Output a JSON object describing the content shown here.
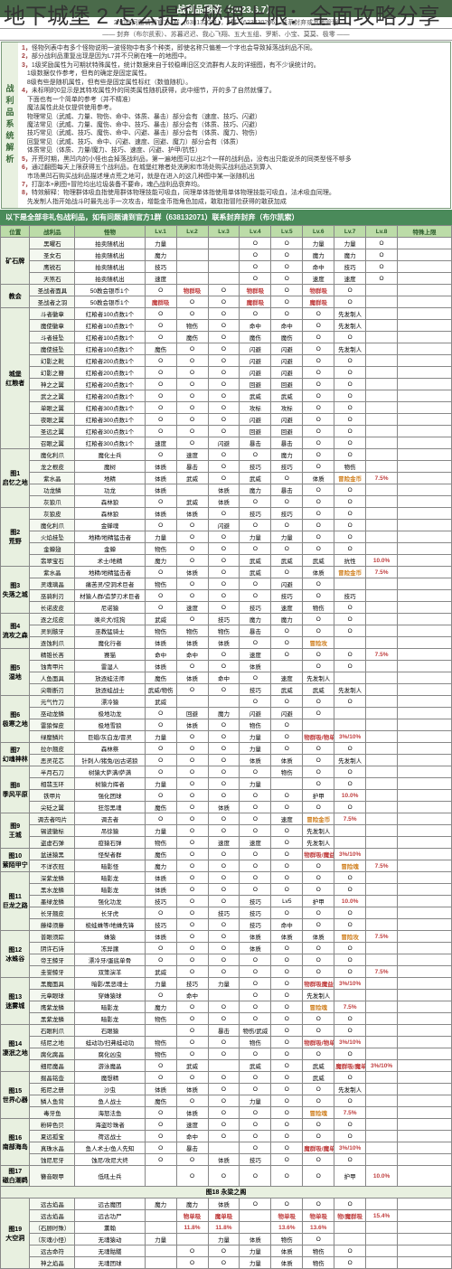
{
  "overlay_title": "地下城堡 2 怎么提升秘银上限：全面攻略分享",
  "header": "战利品图鉴（2023.6.7）",
  "credit1": "2.如有问题请到官方1群（638132071），4群（623430206）联系封弃或其他管理",
  "credit2": "—— 封弃（布尔凯索）、苏暮迟迟、我心飞翔、五大五组、罗斯、小宝、莫莫、极零 ——",
  "side_label": "战利品系统解析",
  "notes": [
    "怪物列表中有多个怪物说明一波怪物中有多个种类，即使名称只偏差一个字也会导致掉落战利品不同。",
    "部分战利品重复出现是因为L7并不只刷在唯一的地图中。",
    "1级奖励属性为可期状特殊属性，统计数据来自于较稳峰旧区交流群有人友的详细图，有不少误统计的。\n1级数据仅作参考，但有的确定是固定属性。\n8级有些是随机属性，但有些是固定属性标红（数值随机）。",
    "未标明的0显示是其特攻属性外的同类属性随机获得，此中细节，开的多了自然就懂了。\n下面也有一个简单的参考（并不精准）\n魔法属性此处仅提供使用参考。\n物理常见（武威、力量、物伤、命中、体质、暴击）部分会有（速度、技巧、闪避）\n魔法常见（武威、力量、魔伤、命中、技巧、暴击）部分会有（体质、技巧、闪避）\n技巧常见（武威、技巧、魔伤、命中、闪避、暴击）部分会有（体质、魔力、物伤）\n回复常见（武威、技巧、命中、闪避、速度、回避、魔力）部分会有（体质）\n体质常见（体质、力量/魔力、技巧、速度、闪避、护甲/抗性）",
    "开荒时期，黑凹内的小怪也会掉落战利品，第一遍地图可以出2个一样的战利品，没有出只能说杀的同类型怪不够多",
    "通过翻图每天上限获得五个战利品，在城堡红粮者处洗刷和市场处购买战利品达到算入\n市场黑凹石购买战利品描述埋点荒之地可，就是在进入的这几种图中某一张随机出",
    "打副本+刷图+冒险均出垃圾装备不要命，魂凸战利品衰弃均。",
    "特效解释：物理群体吸血指使用群体物理技能可吸血，同理单体指使用单体物理技能可吸血，法术吸血同理。\n先发制人指开始战斗时最先出手一次攻击，增能金币指角色加成，敢取指冒险获得的敢获加成"
  ],
  "green_bar": "以下是全部非礼包战利品，如有问题请到官方1群（638132071）联系封弃封弃（布尔凯索）",
  "cols": [
    "位置",
    "战利品",
    "怪物",
    "Lv.1",
    "Lv.2",
    "Lv.3",
    "Lv.4",
    "Lv.5",
    "Lv.6",
    "Lv.7",
    "Lv.8",
    "特殊上限"
  ],
  "zones": [
    {
      "zone": "矿石牌",
      "rows": [
        [
          "黑曜石",
          "拍卖随机出",
          "力量",
          "",
          "",
          "O",
          "O",
          "力量",
          "力量",
          "O",
          ""
        ],
        [
          "圣女石",
          "拍卖随机出",
          "魔力",
          "",
          "",
          "O",
          "O",
          "魔力",
          "魔力",
          "O",
          ""
        ],
        [
          "鹰锐石",
          "拍卖随机出",
          "技巧",
          "",
          "",
          "O",
          "O",
          "命中",
          "技巧",
          "O",
          ""
        ],
        [
          "天煞石",
          "拍卖随机出",
          "速度",
          "",
          "",
          "O",
          "O",
          "速度",
          "速度",
          "O",
          ""
        ]
      ]
    },
    {
      "zone": "教会",
      "rows": [
        [
          "圣战者面具",
          "50教会银币1个",
          "O",
          "物群吸",
          "O",
          "物群吸",
          "O",
          "物群吸",
          "O",
          ""
        ],
        [
          "圣战者之羽",
          "50教会银币1个",
          "魔群吸",
          "O",
          "O",
          "魔群吸",
          "O",
          "魔群吸",
          "O",
          ""
        ]
      ]
    },
    {
      "zone": "城堡\n红粮者",
      "rows": [
        [
          "斗者徽章",
          "红粮者100点数1个",
          "O",
          "O",
          "O",
          "O",
          "O",
          "O",
          "先发制人",
          ""
        ],
        [
          "魔使徽章",
          "红粮者100点数1个",
          "O",
          "物伤",
          "O",
          "命中",
          "命中",
          "O",
          "先发制人",
          ""
        ],
        [
          "斗者挂坠",
          "红粮者100点数1个",
          "O",
          "魔伤",
          "O",
          "魔伤",
          "魔伤",
          "O",
          "O",
          ""
        ],
        [
          "魔使挂坠",
          "红粮者100点数1个",
          "魔伤",
          "O",
          "O",
          "闪避",
          "闪避",
          "O",
          "先发制人",
          ""
        ],
        [
          "幻影之靴",
          "红粮者200点数1个",
          "O",
          "O",
          "O",
          "闪避",
          "闪避",
          "O",
          "O",
          ""
        ],
        [
          "幻影之簪",
          "红粮者200点数1个",
          "O",
          "O",
          "O",
          "闪避",
          "闪避",
          "O",
          "O",
          ""
        ],
        [
          "神之之翼",
          "红粮者200点数1个",
          "O",
          "O",
          "O",
          "回避",
          "回避",
          "O",
          "O",
          ""
        ],
        [
          "武之之翼",
          "红粮者200点数1个",
          "O",
          "O",
          "O",
          "武威",
          "武威",
          "O",
          "O",
          ""
        ],
        [
          "单眼之翼",
          "红粮者300点数1个",
          "O",
          "O",
          "O",
          "攻标",
          "攻标",
          "O",
          "O",
          ""
        ],
        [
          "夜眼之翼",
          "红粮者300点数1个",
          "O",
          "O",
          "O",
          "闪避",
          "闪避",
          "O",
          "O",
          ""
        ],
        [
          "圣远之翼",
          "红粮者300点数1个",
          "O",
          "O",
          "O",
          "回避",
          "回避",
          "O",
          "O",
          ""
        ],
        [
          "召眼之翼",
          "红粮者300点数1个",
          "速度",
          "O",
          "闪避",
          "暴击",
          "暴击",
          "O",
          "O",
          ""
        ]
      ]
    },
    {
      "zone": "图1\n启忆之地",
      "rows": [
        [
          "魔化利爪",
          "魔化士兵",
          "O",
          "速度",
          "O",
          "O",
          "魔力",
          "O",
          "O",
          ""
        ],
        [
          "龙之根皮",
          "魔树",
          "体质",
          "暴击",
          "O",
          "技巧",
          "技巧",
          "O",
          "物伤",
          ""
        ],
        [
          "紫水晶",
          "地精",
          "体质",
          "武威",
          "O",
          "武威",
          "O",
          "体质",
          "冒险金币",
          "7.5%"
        ],
        [
          "功龙鳞",
          "功龙",
          "体质",
          "",
          "体质",
          "魔力",
          "暴击",
          "O",
          "O",
          ""
        ],
        [
          "灰狼爪",
          "森林狼",
          "O",
          "武威",
          "体质",
          "O",
          "O",
          "O",
          "O",
          ""
        ]
      ]
    },
    {
      "zone": "图2\n荒野",
      "rows": [
        [
          "灰狼皮",
          "森林狼",
          "体质",
          "体质",
          "O",
          "技巧",
          "技巧",
          "O",
          "O",
          ""
        ],
        [
          "魔化利爪",
          "金蝉魂",
          "O",
          "O",
          "闪避",
          "O",
          "O",
          "O",
          "O",
          ""
        ],
        [
          "火焰挂坠",
          "地精/地精猛击者",
          "力量",
          "O",
          "O",
          "力量",
          "力量",
          "O",
          "O",
          ""
        ],
        [
          "金蝉翅",
          "金蝉",
          "物伤",
          "O",
          "O",
          "O",
          "O",
          "O",
          "O",
          ""
        ],
        [
          "翡翠宝石",
          "术士/地精",
          "魔力",
          "O",
          "O",
          "武威",
          "武威",
          "武威",
          "抗性",
          "10.0%"
        ]
      ]
    },
    {
      "zone": "图3\n失落之城",
      "rows": [
        [
          "紫水晶",
          "地精/地精猛击者",
          "O",
          "体质",
          "O",
          "武威",
          "O",
          "体质",
          "冒险金币",
          "7.5%"
        ],
        [
          "灵魂璃晶",
          "痛苦灵/空洞术巨者",
          "物伤",
          "O",
          "O",
          "O",
          "闪避",
          "O",
          "",
          ""
        ],
        [
          "巫骑利刃",
          "材猿人群/造梦刃术巨者",
          "O",
          "O",
          "O",
          "O",
          "技巧",
          "O",
          "技巧",
          ""
        ],
        [
          "长诺皮皮",
          "尼诺猿",
          "O",
          "速度",
          "O",
          "技巧",
          "速度",
          "物伤",
          "O",
          ""
        ]
      ]
    },
    {
      "zone": "图4\n流攻之森",
      "rows": [
        [
          "逐之炫皮",
          "唤炎犬/炫狗",
          "武威",
          "O",
          "技巧",
          "魔力",
          "魔力",
          "O",
          "O",
          ""
        ],
        [
          "灵刹骸牙",
          "巫教猛骑士",
          "物伤",
          "物伤",
          "物伤",
          "暴击",
          "O",
          "O",
          "O",
          ""
        ],
        [
          "逐蚀利爪",
          "魔化行者",
          "体质",
          "体质",
          "体质",
          "O",
          "O",
          "冒险攻",
          "",
          ""
        ]
      ]
    },
    {
      "zone": "图5\n湿地",
      "rows": [
        [
          "精锥长吝",
          "赛猫",
          "命中",
          "命中",
          "O",
          "速度",
          "O",
          "O",
          "O",
          "7.5%"
        ],
        [
          "蚀青甲片",
          "雷湿人",
          "体质",
          "O",
          "O",
          "体质",
          "",
          "O",
          "O",
          ""
        ],
        [
          "人鱼面具",
          "放逐蛙法师",
          "魔伤",
          "体质",
          "命中",
          "O",
          "速度",
          "先发制人",
          "",
          ""
        ],
        [
          "尖嘶断刃",
          "放逐蛙战士",
          "武威/物伤",
          "O",
          "O",
          "技巧",
          "武威",
          "武威",
          "先发制人",
          ""
        ]
      ]
    },
    {
      "zone": "图6\n极寒之地",
      "rows": [
        [
          "元气竹刀",
          "漂冷猿",
          "武威",
          "",
          "",
          "O",
          "O",
          "O",
          "O",
          ""
        ],
        [
          "巫动龙鳞",
          "极地功龙",
          "O",
          "回避",
          "魔力",
          "闪避",
          "闪避",
          "O",
          "",
          ""
        ],
        [
          "雷狼悍皮",
          "极地雪狼",
          "O",
          "体质",
          "O",
          "物伤",
          "O",
          "",
          "",
          " "
        ],
        [
          "绿靡鳞片",
          "巨蛾/灰白龙/冒灵",
          "力量",
          "O",
          "O",
          "力量",
          "O",
          "物群吸/物单吸",
          "3%/10%",
          ""
        ]
      ]
    },
    {
      "zone": "图7\n幻魂神林",
      "rows": [
        [
          "拉尔翘皮",
          "森林祭",
          "O",
          "O",
          "O",
          "力量",
          "O",
          "O",
          "O",
          ""
        ],
        [
          "恶灵花芯",
          "针刺人/猪兔/凶古诺狼",
          "O",
          "O",
          "O",
          "体质",
          "体质",
          "O",
          "先发制人",
          ""
        ]
      ]
    },
    {
      "zone": "图8\n季风平原",
      "rows": [
        [
          "半月石刀",
          "树猿大萨满/萨满",
          "O",
          "O",
          "O",
          "O",
          "物伤",
          "O",
          "O",
          ""
        ],
        [
          "相翡玉环",
          "树猿力挥者",
          "力量",
          "O",
          "O",
          "力量",
          "",
          "O",
          "O",
          ""
        ],
        [
          "铁甲片",
          "强化团球",
          "O",
          "O",
          "O",
          "O",
          "O",
          "护甲",
          "10.0%",
          ""
        ],
        [
          "尖砭之翼",
          "狂怨黑魂",
          "魔伤",
          "O",
          "体质",
          "O",
          "O",
          "O",
          "O",
          ""
        ]
      ]
    },
    {
      "zone": "图9\n王城",
      "rows": [
        [
          "调去者吗片",
          "调去者",
          "O",
          "O",
          "O",
          "O",
          "速度",
          "冒险金币",
          "7.5%",
          ""
        ],
        [
          "锡波徽标",
          "吊徐猿",
          "力量",
          "O",
          "O",
          "O",
          "O",
          "先发制人",
          "",
          ""
        ],
        [
          "盗虚石弹",
          "疫猿石弹",
          "物伤",
          "O",
          "速度",
          "速度",
          "O",
          "先发制人",
          "",
          ""
        ]
      ]
    },
    {
      "zone": "图10\n萦陌甲宁",
      "rows": [
        [
          "盆迷猿黑",
          "怪梨者群",
          "魔伤",
          "O",
          "O",
          "O",
          "O",
          "物群吸/魔益指钱",
          "3%/10%",
          ""
        ],
        [
          "不详衣冠",
          "暗影怪",
          "魔力",
          "O",
          "O",
          "O",
          "O",
          "O",
          "冒险魂",
          "7.5%"
        ]
      ]
    },
    {
      "zone": "图11\n巨龙之路",
      "rows": [
        [
          "深紫龙鳞",
          "暗影龙",
          "体质",
          "O",
          "O",
          "O",
          "O",
          "O",
          "O",
          ""
        ],
        [
          "黑水龙鳞",
          "暗影龙",
          "体质",
          "O",
          "O",
          "O",
          "O",
          "O",
          "O",
          ""
        ],
        [
          "墨绿龙鳞",
          "强化功龙",
          "技巧",
          "O",
          "O",
          "技巧",
          "Lv5",
          "护甲",
          "10.0%",
          ""
        ],
        [
          "长牙翘皮",
          "长牙虎",
          "O",
          "O",
          "技巧",
          "技巧",
          "O",
          "O",
          "O",
          ""
        ],
        [
          "藤绛须藤",
          "梳蛙蛛等/地蛛先锋",
          "技巧",
          "O",
          "O",
          "技巧",
          "命中",
          "O",
          "O",
          ""
        ]
      ]
    },
    {
      "zone": "图12\n冰蛛谷",
      "rows": [
        [
          "普眼须踪",
          "蛛猿",
          "体质",
          "O",
          "O",
          "体质",
          "体质",
          "体质",
          "冒险攻",
          "7.5%"
        ],
        [
          "阴许石诗",
          "冻异譲",
          "O",
          "O",
          "O",
          "体质",
          "O",
          "O",
          "O",
          ""
        ],
        [
          "帝王鲸牙",
          "漂冷牙/蛋底单骨",
          "O",
          "O",
          "O",
          "O",
          "O",
          "O",
          "O",
          ""
        ],
        [
          "圭誉鲸牙",
          "双策演羊",
          "武威",
          "O",
          "O",
          "O",
          "O",
          "O",
          "O",
          "7.5%"
        ]
      ]
    },
    {
      "zone": "图13\n迷雾城",
      "rows": [
        [
          "黑魔面具",
          "暗影/黑恶魂士",
          "力量",
          "技巧",
          "力量",
          "O",
          "O",
          "物群吸魔益指钱",
          "3%/10%",
          ""
        ],
        [
          "元章眼球",
          "穿蛛猿球",
          "O",
          "命中",
          "",
          "O",
          "O",
          "先发制人",
          "",
          ""
        ],
        [
          "鹰紫龙鳞",
          "暗影龙",
          "魔力",
          "O",
          "O",
          "O",
          "O",
          "冒险魂",
          "7.5%",
          ""
        ],
        [
          "黑紫龙鳞",
          "暗影龙",
          "物伤",
          "O",
          "O",
          "O",
          "O",
          "O",
          "O",
          ""
        ]
      ]
    },
    {
      "zone": "图14\n凄泯之地",
      "rows": [
        [
          "石眼利爪",
          "石眼猿",
          "",
          "O",
          "暴击",
          "物伤/武威",
          "O",
          "O",
          "O",
          ""
        ],
        [
          "结尼之地",
          "蛙动功/扫弗蛙动功",
          "物伤",
          "O",
          "O",
          "物伤",
          "O",
          "物群吸/物单吸",
          "3%/10%",
          ""
        ],
        [
          "腐化腐晶",
          "腐化凶虫",
          "物伤",
          "O",
          "O",
          "O",
          "O",
          "O",
          "O",
          ""
        ],
        [
          "细尼魔晶",
          "游泳魔晶",
          "O",
          "武威",
          "",
          "武威",
          "O",
          "武威",
          "魔群吸/魔单吸",
          "3%/10%"
        ]
      ]
    },
    {
      "zone": "图15\n世界心器",
      "rows": [
        [
          "掘晶铭壶",
          "魔想精",
          "O",
          "O",
          "O",
          "O",
          "O",
          "武威",
          "O",
          ""
        ],
        [
          "拓尼之册",
          "沙虫",
          "体质",
          "体质",
          "O",
          "O",
          "O",
          "O",
          "先发制人",
          ""
        ],
        [
          "鳞人鱼背",
          "鱼人战士",
          "魔伤",
          "O",
          "O",
          "力量",
          "O",
          "O",
          "O",
          ""
        ],
        [
          "毒牙鱼",
          "海怒法鱼",
          "O",
          "体质",
          "O",
          "O",
          "O",
          "冒险魂",
          "7.5%",
          ""
        ]
      ]
    },
    {
      "zone": "图16\n南部海岛",
      "rows": [
        [
          "粉碎色贝",
          "海盗珍珠者",
          "O",
          "速度",
          "O",
          "O",
          "O",
          "O",
          "O",
          ""
        ],
        [
          "夏远孤宝",
          "荷远战士",
          "O",
          "命中",
          "O",
          "O",
          "O",
          "O",
          "O",
          ""
        ],
        [
          "真珠水晶",
          "鱼人术士/鱼人先知",
          "O",
          "暴击",
          "",
          "O",
          "O",
          "魔群吸/魔单吸",
          "3%/10%",
          ""
        ],
        [
          "蚀尼尼牙",
          "蚀尼/攻尼大终",
          "O",
          "O",
          "体质",
          "技巧",
          "O",
          "O",
          "O",
          ""
        ]
      ]
    },
    {
      "zone": "图17\n磁白潮鹈",
      "rows": [
        [
          "簪音眼甲",
          "低吼士兵",
          "",
          "O",
          "O",
          "O",
          "O",
          "O",
          "护甲",
          "10.0%"
        ]
      ]
    },
    {
      "zone": "图18 永梁之阁",
      "rows": []
    },
    {
      "zone": "图19\n大空洞",
      "rows": [
        [
          "远古焰晶",
          "远古魔团",
          "魔力",
          "魔力",
          "体质",
          "O",
          "O",
          "O",
          "O",
          ""
        ],
        [
          "远古焰晶",
          "远古功尸",
          "",
          "物单吸",
          "魔单吸",
          "",
          "物单吸",
          "物单吸",
          "物/魔群吸",
          "15.4%"
        ],
        [
          "（石顾时殊）",
          "薰翰",
          "",
          "11.8%",
          "11.8%",
          "",
          "13.6%",
          "13.6%",
          "",
          ""
        ],
        [
          "（灰魂小怪）",
          "无魂猿动",
          "力量",
          "",
          "力量",
          "体质",
          "物伤",
          "O",
          "",
          ""
        ],
        [
          "远古命符",
          "无魂骷髅",
          "",
          "O",
          "O",
          "力量",
          "体质",
          "物伤",
          "O",
          ""
        ],
        [
          "神之焰晶",
          "无魂团球",
          "",
          "O",
          "O",
          "力量",
          "体质",
          "物伤",
          "O",
          ""
        ]
      ]
    }
  ]
}
